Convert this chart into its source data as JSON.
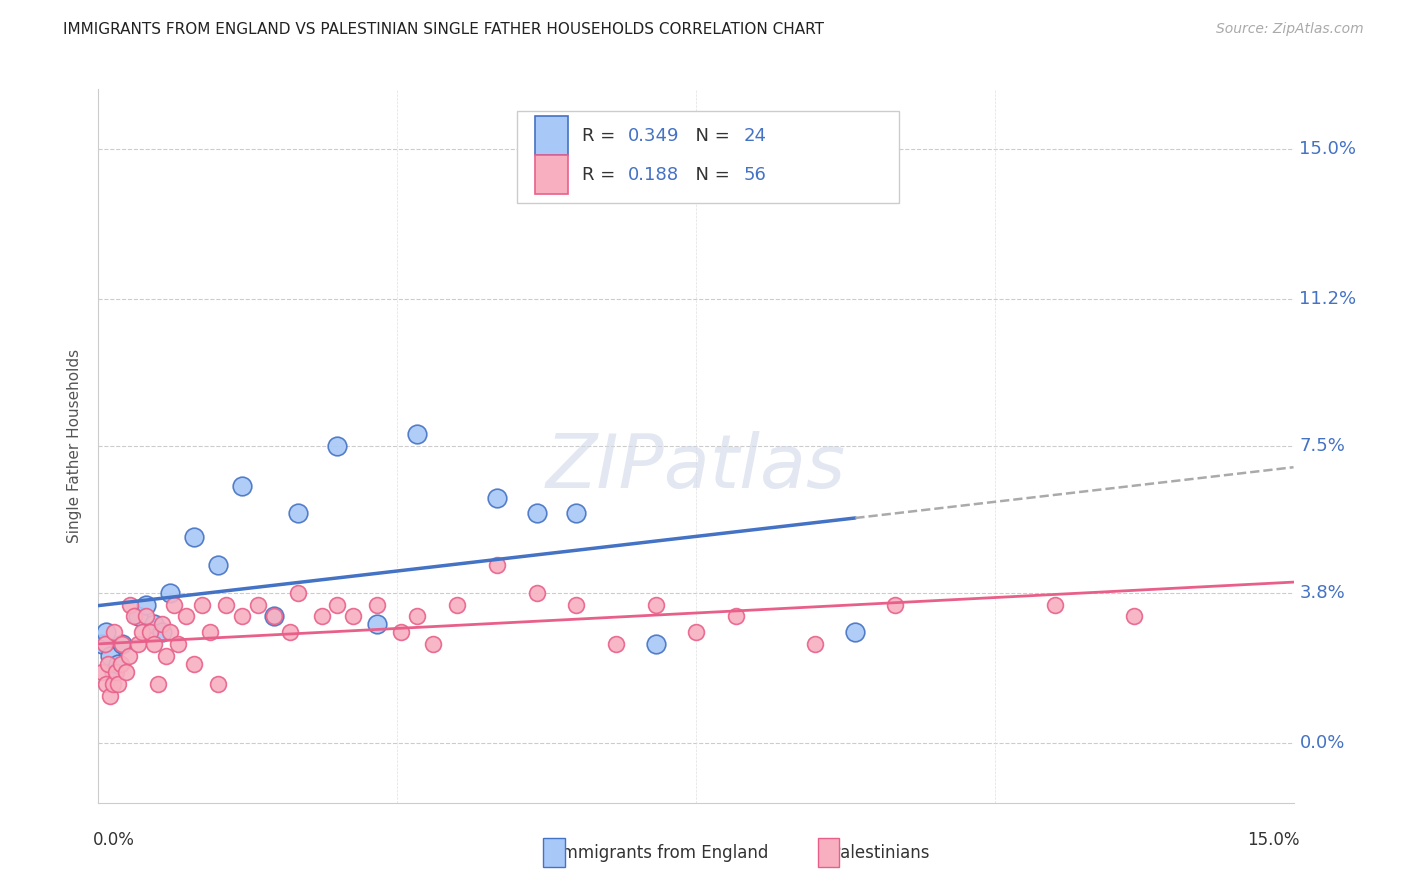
{
  "title": "IMMIGRANTS FROM ENGLAND VS PALESTINIAN SINGLE FATHER HOUSEHOLDS CORRELATION CHART",
  "source": "Source: ZipAtlas.com",
  "ylabel": "Single Father Households",
  "ytick_labels": [
    "0.0%",
    "3.8%",
    "7.5%",
    "11.2%",
    "15.0%"
  ],
  "ytick_values": [
    0.0,
    3.8,
    7.5,
    11.2,
    15.0
  ],
  "xlim": [
    0.0,
    15.0
  ],
  "ylim": [
    -1.5,
    16.5
  ],
  "england_R": "0.349",
  "england_N": "24",
  "palestinian_R": "0.188",
  "palestinian_N": "56",
  "england_color": "#a8c8f8",
  "england_line_color": "#4472c4",
  "palestinian_color": "#f8b0c0",
  "palestinian_line_color": "#e8608a",
  "watermark": "ZIPatlas",
  "england_points": [
    [
      0.05,
      2.5
    ],
    [
      0.1,
      2.8
    ],
    [
      0.15,
      2.2
    ],
    [
      0.2,
      1.8
    ],
    [
      0.25,
      2.0
    ],
    [
      0.3,
      2.5
    ],
    [
      0.5,
      3.2
    ],
    [
      0.6,
      3.5
    ],
    [
      0.7,
      3.0
    ],
    [
      0.8,
      2.8
    ],
    [
      0.9,
      3.8
    ],
    [
      1.2,
      5.2
    ],
    [
      1.5,
      4.5
    ],
    [
      1.8,
      6.5
    ],
    [
      2.2,
      3.2
    ],
    [
      2.5,
      5.8
    ],
    [
      3.0,
      7.5
    ],
    [
      3.5,
      3.0
    ],
    [
      4.0,
      7.8
    ],
    [
      5.0,
      6.2
    ],
    [
      5.5,
      5.8
    ],
    [
      6.0,
      5.8
    ],
    [
      7.0,
      2.5
    ],
    [
      9.5,
      2.8
    ]
  ],
  "palestinian_points": [
    [
      0.05,
      1.8
    ],
    [
      0.08,
      2.5
    ],
    [
      0.1,
      1.5
    ],
    [
      0.12,
      2.0
    ],
    [
      0.15,
      1.2
    ],
    [
      0.18,
      1.5
    ],
    [
      0.2,
      2.8
    ],
    [
      0.22,
      1.8
    ],
    [
      0.25,
      1.5
    ],
    [
      0.28,
      2.0
    ],
    [
      0.3,
      2.5
    ],
    [
      0.35,
      1.8
    ],
    [
      0.38,
      2.2
    ],
    [
      0.4,
      3.5
    ],
    [
      0.45,
      3.2
    ],
    [
      0.5,
      2.5
    ],
    [
      0.55,
      2.8
    ],
    [
      0.6,
      3.2
    ],
    [
      0.65,
      2.8
    ],
    [
      0.7,
      2.5
    ],
    [
      0.75,
      1.5
    ],
    [
      0.8,
      3.0
    ],
    [
      0.85,
      2.2
    ],
    [
      0.9,
      2.8
    ],
    [
      0.95,
      3.5
    ],
    [
      1.0,
      2.5
    ],
    [
      1.1,
      3.2
    ],
    [
      1.2,
      2.0
    ],
    [
      1.3,
      3.5
    ],
    [
      1.4,
      2.8
    ],
    [
      1.5,
      1.5
    ],
    [
      1.6,
      3.5
    ],
    [
      1.8,
      3.2
    ],
    [
      2.0,
      3.5
    ],
    [
      2.2,
      3.2
    ],
    [
      2.4,
      2.8
    ],
    [
      2.5,
      3.8
    ],
    [
      2.8,
      3.2
    ],
    [
      3.0,
      3.5
    ],
    [
      3.2,
      3.2
    ],
    [
      3.5,
      3.5
    ],
    [
      3.8,
      2.8
    ],
    [
      4.0,
      3.2
    ],
    [
      4.2,
      2.5
    ],
    [
      4.5,
      3.5
    ],
    [
      5.0,
      4.5
    ],
    [
      5.5,
      3.8
    ],
    [
      6.0,
      3.5
    ],
    [
      6.5,
      2.5
    ],
    [
      7.0,
      3.5
    ],
    [
      7.5,
      2.8
    ],
    [
      8.0,
      3.2
    ],
    [
      9.0,
      2.5
    ],
    [
      10.0,
      3.5
    ],
    [
      12.0,
      3.5
    ],
    [
      13.0,
      3.2
    ]
  ]
}
